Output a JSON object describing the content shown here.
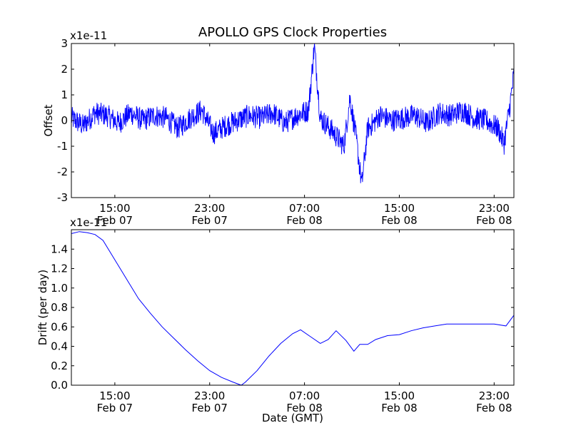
{
  "title": "APOLLO GPS Clock Properties",
  "chart_data": [
    {
      "type": "line",
      "title": "APOLLO GPS Clock Properties",
      "ylabel": "Offset",
      "xlabel": "",
      "y_multiplier": "x1e-11",
      "xlim": [
        "2013-02-07 11:20",
        "2013-02-09 00:40"
      ],
      "ylim": [
        -3,
        3
      ],
      "yticks": [
        "-3",
        "-2",
        "-1",
        "0",
        "1",
        "2",
        "3"
      ],
      "xticks": [
        {
          "x": "2013-02-07 15:00",
          "time": "15:00",
          "date": "Feb 07"
        },
        {
          "x": "2013-02-07 23:00",
          "time": "23:00",
          "date": "Feb 07"
        },
        {
          "x": "2013-02-08 07:00",
          "time": "07:00",
          "date": "Feb 08"
        },
        {
          "x": "2013-02-08 15:00",
          "time": "15:00",
          "date": "Feb 08"
        },
        {
          "x": "2013-02-08 23:00",
          "time": "23:00",
          "date": "Feb 08"
        }
      ],
      "grid": false,
      "color": "#0000ff",
      "series": [
        {
          "x": [
            "2013-02-07 11:20",
            "2013-02-07 12:20",
            "2013-02-07 13:20",
            "2013-02-07 14:20",
            "2013-02-07 15:20",
            "2013-02-07 16:20",
            "2013-02-07 17:20",
            "2013-02-07 18:20",
            "2013-02-07 19:20",
            "2013-02-07 20:20",
            "2013-02-07 21:20",
            "2013-02-07 22:20",
            "2013-02-07 23:20",
            "2013-02-08 00:20",
            "2013-02-08 01:20",
            "2013-02-08 02:20",
            "2013-02-08 03:20",
            "2013-02-08 04:20",
            "2013-02-08 05:20",
            "2013-02-08 06:20",
            "2013-02-08 07:20",
            "2013-02-08 07:50",
            "2013-02-08 08:20",
            "2013-02-08 09:20",
            "2013-02-08 10:20",
            "2013-02-08 10:50",
            "2013-02-08 11:20",
            "2013-02-08 11:50",
            "2013-02-08 12:20",
            "2013-02-08 12:50",
            "2013-02-08 13:20",
            "2013-02-08 14:20",
            "2013-02-08 15:20",
            "2013-02-08 16:20",
            "2013-02-08 17:20",
            "2013-02-08 18:20",
            "2013-02-08 19:20",
            "2013-02-08 20:20",
            "2013-02-08 21:20",
            "2013-02-08 22:20",
            "2013-02-08 23:20",
            "2013-02-08 23:50",
            "2013-02-09 00:20",
            "2013-02-09 00:40"
          ],
          "y": [
            0.1,
            -0.2,
            0.3,
            0.2,
            -0.1,
            0.3,
            0.0,
            0.2,
            0.1,
            -0.3,
            0.1,
            0.4,
            -0.5,
            -0.2,
            0.0,
            0.2,
            0.1,
            0.3,
            -0.1,
            0.2,
            0.4,
            2.9,
            0.1,
            -0.4,
            -1.0,
            0.9,
            -0.6,
            -2.5,
            -0.3,
            -0.1,
            0.2,
            0.0,
            0.1,
            0.2,
            -0.1,
            0.3,
            0.2,
            0.4,
            0.1,
            0.0,
            -0.3,
            -0.9,
            0.6,
            1.8
          ]
        }
      ]
    },
    {
      "type": "line",
      "title": "",
      "ylabel": "Drift (per day)",
      "xlabel": "Date (GMT)",
      "y_multiplier": "x1e-11",
      "xlim": [
        "2013-02-07 11:20",
        "2013-02-09 00:40"
      ],
      "ylim": [
        0.0,
        1.6
      ],
      "yticks": [
        "0.0",
        "0.2",
        "0.4",
        "0.6",
        "0.8",
        "1.0",
        "1.2",
        "1.4"
      ],
      "xticks": [
        {
          "x": "2013-02-07 15:00",
          "time": "15:00",
          "date": "Feb 07"
        },
        {
          "x": "2013-02-07 23:00",
          "time": "23:00",
          "date": "Feb 07"
        },
        {
          "x": "2013-02-08 07:00",
          "time": "07:00",
          "date": "Feb 08"
        },
        {
          "x": "2013-02-08 15:00",
          "time": "15:00",
          "date": "Feb 08"
        },
        {
          "x": "2013-02-08 23:00",
          "time": "23:00",
          "date": "Feb 08"
        }
      ],
      "grid": false,
      "color": "#0000ff",
      "series": [
        {
          "x": [
            "2013-02-07 11:20",
            "2013-02-07 12:00",
            "2013-02-07 12:40",
            "2013-02-07 13:20",
            "2013-02-07 14:00",
            "2013-02-07 15:00",
            "2013-02-07 16:00",
            "2013-02-07 17:00",
            "2013-02-07 18:00",
            "2013-02-07 19:00",
            "2013-02-07 20:00",
            "2013-02-07 21:00",
            "2013-02-07 22:00",
            "2013-02-07 23:00",
            "2013-02-08 00:00",
            "2013-02-08 01:00",
            "2013-02-08 01:40",
            "2013-02-08 02:00",
            "2013-02-08 03:00",
            "2013-02-08 04:00",
            "2013-02-08 05:00",
            "2013-02-08 06:00",
            "2013-02-08 06:40",
            "2013-02-08 07:30",
            "2013-02-08 08:20",
            "2013-02-08 09:00",
            "2013-02-08 09:40",
            "2013-02-08 10:30",
            "2013-02-08 11:10",
            "2013-02-08 11:40",
            "2013-02-08 12:20",
            "2013-02-08 13:00",
            "2013-02-08 14:00",
            "2013-02-08 15:00",
            "2013-02-08 16:00",
            "2013-02-08 17:00",
            "2013-02-08 18:00",
            "2013-02-08 19:00",
            "2013-02-08 20:00",
            "2013-02-08 21:00",
            "2013-02-08 22:00",
            "2013-02-08 23:00",
            "2013-02-09 00:00",
            "2013-02-09 00:40"
          ],
          "y": [
            1.56,
            1.58,
            1.57,
            1.55,
            1.49,
            1.29,
            1.09,
            0.89,
            0.74,
            0.6,
            0.48,
            0.36,
            0.25,
            0.15,
            0.08,
            0.03,
            0.0,
            0.03,
            0.15,
            0.3,
            0.43,
            0.53,
            0.57,
            0.5,
            0.43,
            0.47,
            0.56,
            0.46,
            0.35,
            0.42,
            0.42,
            0.47,
            0.51,
            0.52,
            0.56,
            0.59,
            0.61,
            0.63,
            0.63,
            0.63,
            0.63,
            0.63,
            0.61,
            0.72
          ]
        }
      ]
    }
  ]
}
